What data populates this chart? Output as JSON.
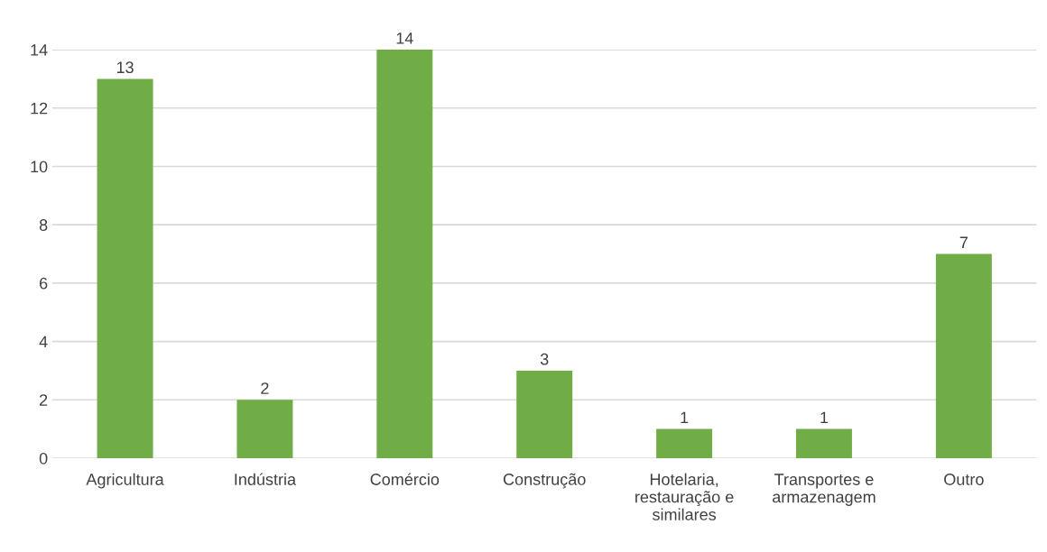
{
  "chart_data": {
    "type": "bar",
    "categories": [
      "Agricultura",
      "Indústria",
      "Comércio",
      "Construção",
      "Hotelaria, restauração e similares",
      "Transportes e armazenagem",
      "Outro"
    ],
    "values": [
      13,
      2,
      14,
      3,
      1,
      1,
      7
    ],
    "color": "#70ad47",
    "ylim": [
      0,
      14
    ],
    "yticks": [
      0,
      2,
      4,
      6,
      8,
      10,
      12,
      14
    ],
    "grid": "y",
    "data_labels": true
  }
}
